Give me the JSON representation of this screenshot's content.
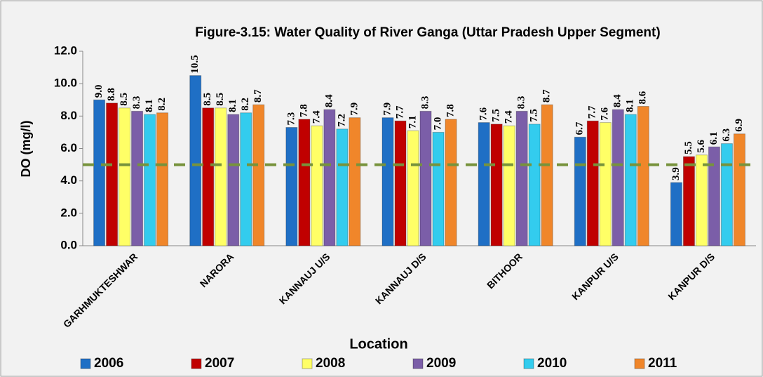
{
  "chart_data": {
    "type": "bar",
    "title": "Figure-3.15: Water Quality of River Ganga (Uttar Pradesh Upper Segment)",
    "y_label": "DO (mg/l)",
    "x_label": "Location",
    "categories": [
      "GARHMUKTESHWAR",
      "NARORA",
      "KANNAUJ U/S",
      "KANNAUJ D/S",
      "BITHOOR",
      "KANPUR U/S",
      "KANPUR D/S"
    ],
    "series": [
      {
        "name": "2006",
        "color": "#1f6fc5",
        "values": [
          9.0,
          10.5,
          7.3,
          7.9,
          7.6,
          6.7,
          3.9
        ],
        "value_labels": [
          "9.0",
          "10.5",
          "7.3",
          "7.9",
          "7.6",
          "6.7",
          "3.9"
        ]
      },
      {
        "name": "2007",
        "color": "#c00000",
        "values": [
          8.8,
          8.5,
          7.8,
          7.7,
          7.5,
          7.7,
          5.5
        ],
        "value_labels": [
          "8.8",
          "8.5",
          "7.8",
          "7.7",
          "7.5",
          "7.7",
          "5.5"
        ]
      },
      {
        "name": "2008",
        "color": "#ffff66",
        "values": [
          8.5,
          8.5,
          7.4,
          7.1,
          7.4,
          7.6,
          5.6
        ],
        "value_labels": [
          "8.5",
          "8.5",
          "7.4",
          "7.1",
          "7.4",
          "7.6",
          "5.6"
        ]
      },
      {
        "name": "2009",
        "color": "#7b5ea8",
        "values": [
          8.3,
          8.1,
          8.4,
          8.3,
          8.3,
          8.4,
          6.1
        ],
        "value_labels": [
          "8.3",
          "8.1",
          "8.4",
          "8.3",
          "8.3",
          "8.4",
          "6.1"
        ]
      },
      {
        "name": "2010",
        "color": "#33ccee",
        "values": [
          8.1,
          8.2,
          7.2,
          7.0,
          7.5,
          8.1,
          6.3
        ],
        "value_labels": [
          "8.1",
          "8.2",
          "7.2",
          "7.0",
          "7.5",
          "8.1",
          "6.3"
        ]
      },
      {
        "name": "2011",
        "color": "#f0862a",
        "values": [
          8.2,
          8.7,
          7.9,
          7.8,
          8.7,
          8.6,
          6.9
        ],
        "value_labels": [
          "8.2",
          "8.7",
          "7.9",
          "7.8",
          "8.7",
          "8.6",
          "6.9"
        ]
      }
    ],
    "threshold": 5,
    "threshold_color": "#77933c",
    "ylim": [
      0,
      12
    ],
    "yticks": [
      {
        "value": 0,
        "label": "0.0"
      },
      {
        "value": 2,
        "label": "2.0"
      },
      {
        "value": 4,
        "label": "4.0"
      },
      {
        "value": 6,
        "label": "6.0"
      },
      {
        "value": 8,
        "label": "8.0"
      },
      {
        "value": 10,
        "label": "10.0"
      },
      {
        "value": 12,
        "label": "12.0"
      }
    ],
    "legend": "bottom"
  }
}
